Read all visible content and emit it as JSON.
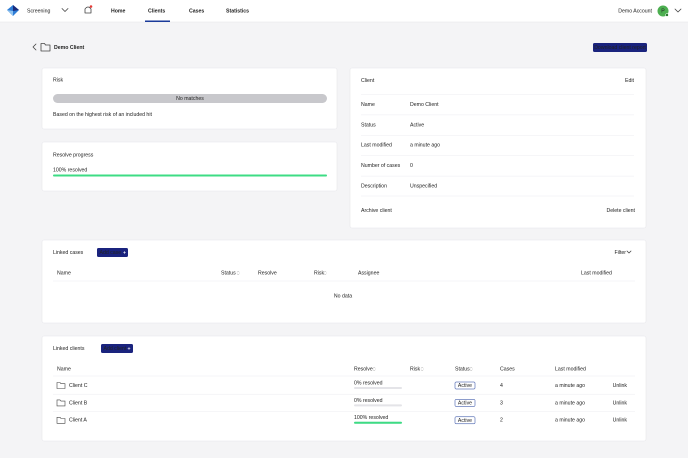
{
  "nav": {
    "product": "Screening",
    "links": [
      "Home",
      "Clients",
      "Cases",
      "Statistics"
    ],
    "active_link": 1,
    "account": "Demo Account",
    "avatar": "P"
  },
  "header": {
    "title": "Demo Client",
    "download_button": "Download client report"
  },
  "risk_card": {
    "title": "Risk",
    "risk_label": "No matches",
    "note": "Based on the highest risk of an included hit"
  },
  "progress_card": {
    "title": "Resolve progress",
    "resolved": {
      "value": 100,
      "label": "100% resolved"
    }
  },
  "client_card": {
    "title": "Client",
    "edit": "Edit",
    "fields": [
      [
        "Name",
        "Demo Client"
      ],
      [
        "Status",
        "Active"
      ],
      [
        "Last modified",
        "a minute ago"
      ],
      [
        "Number of cases",
        0
      ],
      [
        "Description",
        "Unspecified"
      ]
    ],
    "archive": "Archive client",
    "delete": "Delete client"
  },
  "linked_cases": {
    "title": "Linked cases",
    "add_button": "Add case",
    "filter": "Filter",
    "columns": [
      "Name",
      "Status",
      "Resolve",
      "Risk",
      "Assignee",
      "Last modified"
    ],
    "empty": "No data"
  },
  "linked_clients": {
    "title": "Linked clients",
    "add_button": "Add client",
    "columns": [
      "Name",
      "Resolve",
      "Risk",
      "Status",
      "Cases",
      "Last modified"
    ],
    "rows": [
      {
        "name": "Client C",
        "resolved": {
          "value": 0,
          "label": "0% resolved"
        },
        "status": "Active",
        "cases": 4,
        "last_modified": "a minute ago",
        "action": "Unlink"
      },
      {
        "name": "Client B",
        "resolved": {
          "value": 0,
          "label": "0% resolved"
        },
        "status": "Active",
        "cases": 3,
        "last_modified": "a minute ago",
        "action": "Unlink"
      },
      {
        "name": "Client A",
        "resolved": {
          "value": 100,
          "label": "100% resolved"
        },
        "status": "Active",
        "cases": 2,
        "last_modified": "a minute ago",
        "action": "Unlink"
      }
    ]
  }
}
